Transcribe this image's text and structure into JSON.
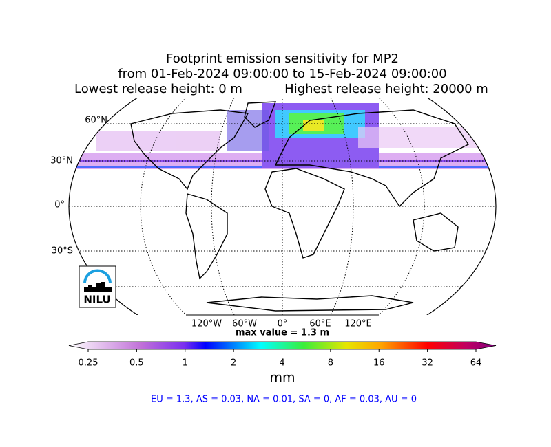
{
  "title": [
    "Footprint emission sensitivity for MP2",
    "from 01-Feb-2024 09:00:00 to 15-Feb-2024 09:00:00",
    "Lowest release height: 0 m",
    "Highest release height: 20000 m"
  ],
  "map": {
    "lat_labels": [
      "60°N",
      "30°N",
      "0°",
      "30°S"
    ],
    "lon_labels": [
      "120°W",
      "60°W",
      "0°",
      "60°E",
      "120°E"
    ],
    "max_value": "max value = 1.3 m",
    "logo": "NILU"
  },
  "colorbar": {
    "ticks": [
      0.25,
      0.5,
      1,
      2,
      4,
      8,
      16,
      32,
      64
    ],
    "unit": "mm"
  },
  "footer": "EU = 1.3,  AS = 0.03,  NA = 0.01,  SA = 0,  AF = 0.03,  AU = 0"
}
